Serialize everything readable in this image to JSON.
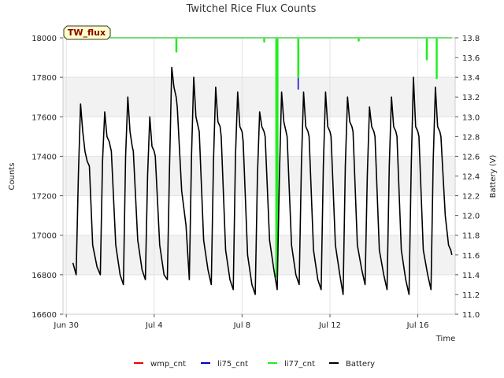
{
  "chart_data": {
    "type": "line",
    "title": "Twitchel Rice Flux Counts",
    "site_label": "TW_flux",
    "xlabel": "Time",
    "ylabel_left": "Counts",
    "ylabel_right": "Battery (V)",
    "x_unit": "days since Jun 30",
    "xlim": [
      -0.15,
      17.7
    ],
    "ylim_left": [
      16600,
      18000
    ],
    "ylim_right": [
      11.0,
      13.8
    ],
    "x_ticks": [
      {
        "value": 0,
        "label": "Jun 30"
      },
      {
        "value": 4,
        "label": "Jul 4"
      },
      {
        "value": 8,
        "label": "Jul 8"
      },
      {
        "value": 12,
        "label": "Jul 12"
      },
      {
        "value": 16,
        "label": "Jul 16"
      }
    ],
    "y_ticks_left": [
      {
        "value": 16600,
        "label": "16600"
      },
      {
        "value": 16800,
        "label": "16800"
      },
      {
        "value": 17000,
        "label": "17000"
      },
      {
        "value": 17200,
        "label": "17200"
      },
      {
        "value": 17400,
        "label": "17400"
      },
      {
        "value": 17600,
        "label": "17600"
      },
      {
        "value": 17800,
        "label": "17800"
      },
      {
        "value": 18000,
        "label": "18000"
      }
    ],
    "y_ticks_right": [
      {
        "value": 11.0,
        "label": "11.0"
      },
      {
        "value": 11.2,
        "label": "11.2"
      },
      {
        "value": 11.4,
        "label": "11.4"
      },
      {
        "value": 11.6,
        "label": "11.6"
      },
      {
        "value": 11.8,
        "label": "11.8"
      },
      {
        "value": 12.0,
        "label": "12.0"
      },
      {
        "value": 12.2,
        "label": "12.2"
      },
      {
        "value": 12.4,
        "label": "12.4"
      },
      {
        "value": 12.6,
        "label": "12.6"
      },
      {
        "value": 12.8,
        "label": "12.8"
      },
      {
        "value": 13.0,
        "label": "13.0"
      },
      {
        "value": 13.2,
        "label": "13.2"
      },
      {
        "value": 13.4,
        "label": "13.4"
      },
      {
        "value": 13.6,
        "label": "13.6"
      },
      {
        "value": 13.8,
        "label": "13.8"
      }
    ],
    "series": [
      {
        "name": "wmp_cnt",
        "color": "#ee0000",
        "axis": "left",
        "x": [],
        "y": []
      },
      {
        "name": "li75_cnt",
        "color": "#0000cc",
        "axis": "left",
        "x": [
          0.3,
          10.55,
          10.55,
          10.56,
          10.56,
          17.55
        ],
        "y": [
          18000,
          18000,
          17740,
          17740,
          18000,
          18000
        ]
      },
      {
        "name": "li77_cnt",
        "color": "#22ee22",
        "axis": "left",
        "x": [
          0.3,
          5.0,
          5.0,
          5.02,
          5.02,
          9.0,
          9.0,
          9.02,
          9.02,
          9.55,
          9.55,
          9.57,
          9.57,
          9.6,
          9.6,
          9.62,
          9.62,
          10.55,
          10.55,
          10.57,
          10.57,
          13.3,
          13.3,
          13.32,
          13.32,
          16.4,
          16.4,
          16.42,
          16.42,
          16.85,
          16.85,
          16.87,
          16.87,
          17.55
        ],
        "y": [
          18000,
          18000,
          17930,
          17930,
          18000,
          18000,
          17980,
          17980,
          18000,
          18000,
          16790,
          16790,
          18000,
          18000,
          16900,
          16900,
          18000,
          18000,
          17800,
          17800,
          18000,
          18000,
          17985,
          17985,
          18000,
          18000,
          17890,
          17890,
          18000,
          18000,
          17795,
          17795,
          18000,
          18000
        ]
      },
      {
        "name": "Battery",
        "color": "#000000",
        "axis": "right",
        "x": [
          0.3,
          0.45,
          0.55,
          0.65,
          0.75,
          0.85,
          0.95,
          1.05,
          1.2,
          1.4,
          1.55,
          1.65,
          1.75,
          1.85,
          1.95,
          2.05,
          2.25,
          2.45,
          2.6,
          2.7,
          2.8,
          2.9,
          3.0,
          3.05,
          3.25,
          3.45,
          3.6,
          3.7,
          3.8,
          3.9,
          4.0,
          4.05,
          4.25,
          4.45,
          4.6,
          4.7,
          4.8,
          4.9,
          5.0,
          5.05,
          5.25,
          5.45,
          5.6,
          5.7,
          5.8,
          5.9,
          6.0,
          6.05,
          6.25,
          6.45,
          6.6,
          6.7,
          6.8,
          6.9,
          7.0,
          7.05,
          7.25,
          7.45,
          7.6,
          7.7,
          7.8,
          7.9,
          8.0,
          8.05,
          8.25,
          8.45,
          8.6,
          8.7,
          8.8,
          8.9,
          9.0,
          9.05,
          9.25,
          9.45,
          9.6,
          9.7,
          9.8,
          9.9,
          10.0,
          10.05,
          10.25,
          10.45,
          10.6,
          10.7,
          10.8,
          10.9,
          11.0,
          11.05,
          11.25,
          11.45,
          11.6,
          11.7,
          11.8,
          11.9,
          12.0,
          12.05,
          12.25,
          12.45,
          12.6,
          12.7,
          12.8,
          12.9,
          13.0,
          13.05,
          13.25,
          13.45,
          13.6,
          13.7,
          13.8,
          13.9,
          14.0,
          14.05,
          14.25,
          14.45,
          14.6,
          14.7,
          14.8,
          14.9,
          15.0,
          15.05,
          15.25,
          15.45,
          15.6,
          15.7,
          15.8,
          15.9,
          16.0,
          16.05,
          16.25,
          16.45,
          16.6,
          16.7,
          16.8,
          16.9,
          17.0,
          17.05,
          17.25,
          17.4,
          17.5,
          17.55
        ],
        "y": [
          11.52,
          11.4,
          12.4,
          13.13,
          12.85,
          12.65,
          12.55,
          12.5,
          11.7,
          11.48,
          11.4,
          12.55,
          13.05,
          12.8,
          12.75,
          12.65,
          11.7,
          11.4,
          11.3,
          12.6,
          13.2,
          12.85,
          12.7,
          12.65,
          11.75,
          11.45,
          11.35,
          12.4,
          13.0,
          12.7,
          12.65,
          12.6,
          11.7,
          11.4,
          11.35,
          12.5,
          13.5,
          13.3,
          13.2,
          13.1,
          12.25,
          11.9,
          11.35,
          12.6,
          13.4,
          13.0,
          12.9,
          12.85,
          11.75,
          11.45,
          11.3,
          12.55,
          13.3,
          12.95,
          12.9,
          12.8,
          11.65,
          11.35,
          11.25,
          12.6,
          13.25,
          12.9,
          12.85,
          12.75,
          11.6,
          11.3,
          11.2,
          12.4,
          13.05,
          12.9,
          12.85,
          12.8,
          11.75,
          11.45,
          11.25,
          12.4,
          13.25,
          12.95,
          12.85,
          12.8,
          11.7,
          11.4,
          11.3,
          12.5,
          13.25,
          12.9,
          12.85,
          12.8,
          11.65,
          11.35,
          11.25,
          12.5,
          13.25,
          12.9,
          12.85,
          12.8,
          11.7,
          11.4,
          11.2,
          12.5,
          13.2,
          12.95,
          12.9,
          12.85,
          11.7,
          11.45,
          11.3,
          12.4,
          13.1,
          12.9,
          12.85,
          12.8,
          11.65,
          11.4,
          11.25,
          12.5,
          13.2,
          12.9,
          12.85,
          12.8,
          11.65,
          11.35,
          11.2,
          12.5,
          13.4,
          12.9,
          12.85,
          12.8,
          11.65,
          11.4,
          11.25,
          12.55,
          13.3,
          12.9,
          12.85,
          12.8,
          12.0,
          11.7,
          11.65,
          11.6
        ]
      }
    ],
    "legend": {
      "position": "bottom",
      "items": [
        {
          "label": "wmp_cnt",
          "color": "#ee0000"
        },
        {
          "label": "li75_cnt",
          "color": "#0000cc"
        },
        {
          "label": "li77_cnt",
          "color": "#22ee22"
        },
        {
          "label": "Battery",
          "color": "#000000"
        }
      ]
    },
    "grid": true,
    "bands": [
      [
        16800,
        17000
      ],
      [
        17200,
        17400
      ],
      [
        17600,
        17800
      ]
    ]
  }
}
